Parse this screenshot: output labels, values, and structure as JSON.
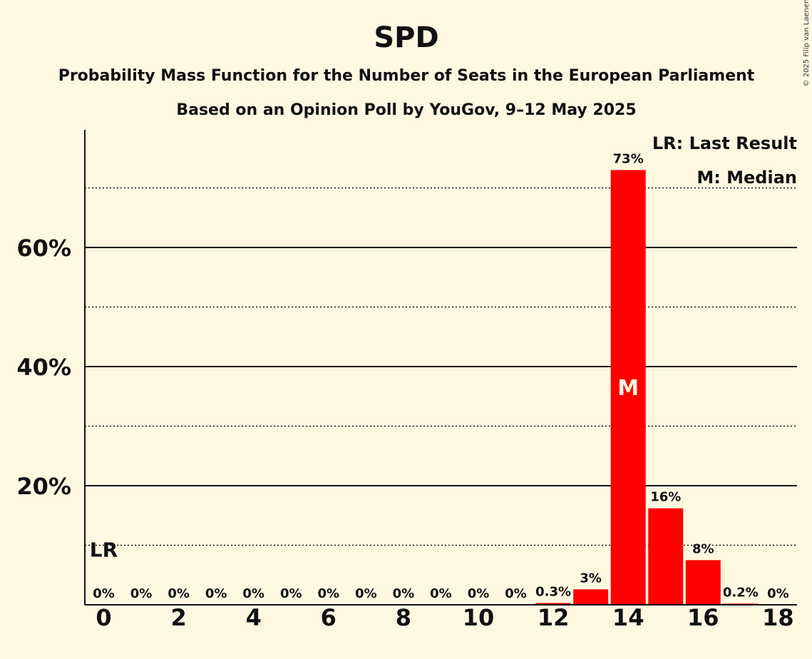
{
  "chart_data": {
    "type": "bar",
    "title": "SPD",
    "subtitle1": "Probability Mass Function for the Number of Seats in the European Parliament",
    "subtitle2": "Based on an Opinion Poll by YouGov, 9–12 May 2025",
    "copyright": "© 2025 Filip van Laenen",
    "x": [
      0,
      1,
      2,
      3,
      4,
      5,
      6,
      7,
      8,
      9,
      10,
      11,
      12,
      13,
      14,
      15,
      16,
      17,
      18
    ],
    "values": [
      0,
      0,
      0,
      0,
      0,
      0,
      0,
      0,
      0,
      0,
      0,
      0,
      0.3,
      2.6,
      73,
      16.2,
      7.5,
      0.2,
      0
    ],
    "labels": [
      "0%",
      "0%",
      "0%",
      "0%",
      "0%",
      "0%",
      "0%",
      "0%",
      "0%",
      "0%",
      "0%",
      "0%",
      "0.3%",
      "3%",
      "73%",
      "16%",
      "8%",
      "0.2%",
      "0%"
    ],
    "x_tick_labels": [
      "0",
      "2",
      "4",
      "6",
      "8",
      "10",
      "12",
      "14",
      "16",
      "18"
    ],
    "x_ticks": [
      0,
      2,
      4,
      6,
      8,
      10,
      12,
      14,
      16,
      18
    ],
    "y_tick_labels": [
      "20%",
      "40%",
      "60%"
    ],
    "y_ticks": [
      20,
      40,
      60
    ],
    "y_minor_gridlines": [
      10,
      30,
      50,
      70
    ],
    "ylim": [
      0,
      80
    ],
    "last_result": {
      "seat": 0,
      "label": "LR"
    },
    "median": {
      "seat": 14,
      "label": "M"
    },
    "legend": [
      "LR: Last Result",
      "M: Median"
    ],
    "bar_color": "#FF0000",
    "background_color": "#FFF8E1"
  }
}
